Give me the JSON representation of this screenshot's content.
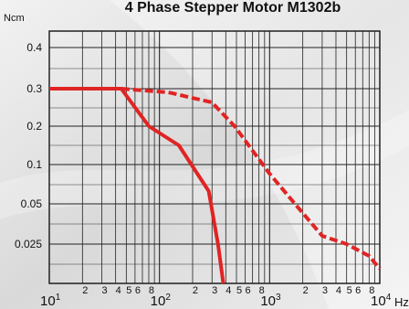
{
  "chart_data": {
    "type": "line",
    "title": "4 Phase Stepper Motor M1302b",
    "ylabel": "Ncm",
    "xlabel": "",
    "xunit": "Hz",
    "x_scale": "log",
    "xlim": [
      10,
      10000
    ],
    "y_ticks": [
      "0.4",
      "0.3",
      "0.2",
      "0.1",
      "0.05",
      "0.025"
    ],
    "x_major_ticks": [
      {
        "value": 10,
        "base": "10",
        "exp": "1"
      },
      {
        "value": 100,
        "base": "10",
        "exp": "2"
      },
      {
        "value": 1000,
        "base": "10",
        "exp": "3"
      },
      {
        "value": 10000,
        "base": "10",
        "exp": "4"
      }
    ],
    "x_minor_labels": [
      "2",
      "3",
      "4",
      "5",
      "6",
      "8"
    ],
    "x_minor_values": [
      2,
      3,
      4,
      5,
      6,
      8
    ],
    "grid": true,
    "color": "#e02424",
    "series": [
      {
        "style": "solid",
        "points": [
          {
            "x": 10,
            "y": "0.3"
          },
          {
            "x": 45,
            "y": "0.3"
          },
          {
            "x": 80,
            "y": "0.2"
          },
          {
            "x": 150,
            "y": "0.15"
          },
          {
            "x": 280,
            "y": "0.06"
          },
          {
            "x": 340,
            "y": "0.025"
          },
          {
            "x": 380,
            "y": "0.018"
          }
        ]
      },
      {
        "style": "dashed",
        "points": [
          {
            "x": 45,
            "y": "0.3"
          },
          {
            "x": 120,
            "y": "0.28"
          },
          {
            "x": 300,
            "y": "0.25"
          },
          {
            "x": 480,
            "y": "0.2"
          },
          {
            "x": 1000,
            "y": "0.08"
          },
          {
            "x": 1700,
            "y": "0.05"
          },
          {
            "x": 3000,
            "y": "0.03"
          },
          {
            "x": 5000,
            "y": "0.025"
          },
          {
            "x": 8000,
            "y": "0.022"
          },
          {
            "x": 10000,
            "y": "0.02"
          }
        ]
      }
    ]
  }
}
